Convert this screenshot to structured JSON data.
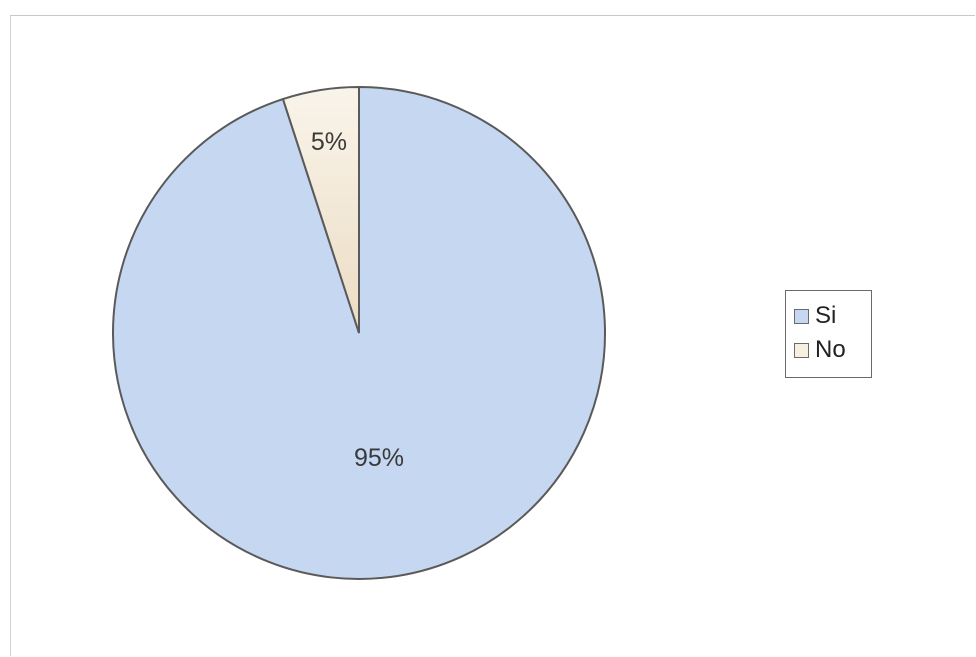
{
  "chart_data": {
    "type": "pie",
    "categories": [
      "Si",
      "No"
    ],
    "values": [
      95,
      5
    ],
    "data_labels": [
      "95%",
      "5%"
    ],
    "colors": [
      "#c6d7f1",
      "#f7efdf"
    ],
    "legend": "right",
    "title": ""
  }
}
